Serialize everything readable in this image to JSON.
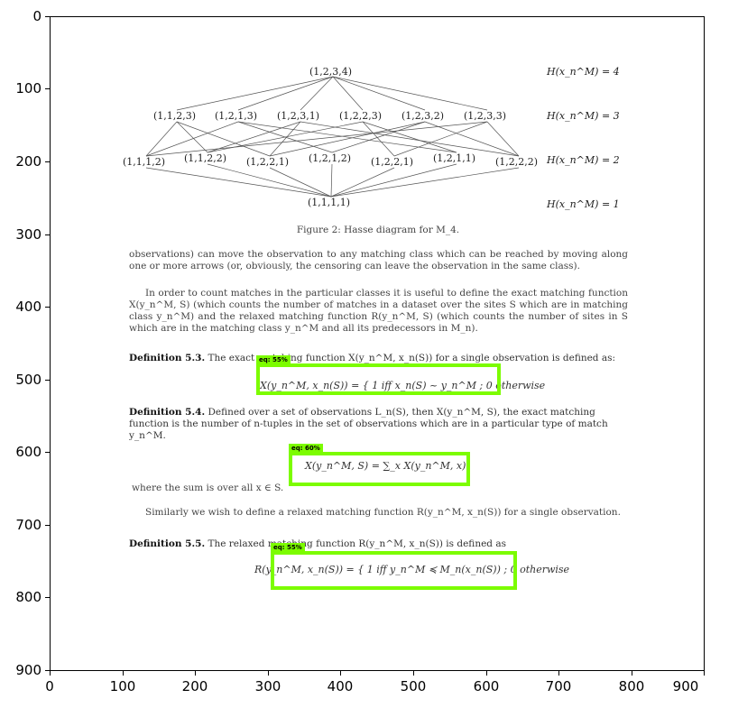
{
  "axes": {
    "y_ticks": [
      "0",
      "100",
      "200",
      "300",
      "400",
      "500",
      "600",
      "700",
      "800",
      "900"
    ],
    "x_ticks": [
      "0",
      "100",
      "200",
      "300",
      "400",
      "500",
      "600",
      "700",
      "800",
      "900"
    ]
  },
  "diagram": {
    "top": "(1,2,3,4)",
    "row3": [
      "(1,1,2,3)",
      "(1,2,1,3)",
      "(1,2,3,1)",
      "(1,2,2,3)",
      "(1,2,3,2)",
      "(1,2,3,3)"
    ],
    "row2": [
      "(1,1,1,2)",
      "(1,1,2,2)",
      "(1,2,2,1)",
      "(1,2,1,2)",
      "(1,2,2,1)",
      "(1,2,1,1)",
      "(1,2,2,2)"
    ],
    "bottom": "(1,1,1,1)",
    "ranks": [
      "H(x_n^M) = 4",
      "H(x_n^M) = 3",
      "H(x_n^M) = 2",
      "H(x_n^M) = 1"
    ],
    "caption": "Figure 2: Hasse diagram for M_4."
  },
  "text": {
    "para1": "observations) can move the observation to any matching class which can be reached by moving along one or more arrows (or, obviously, the censoring can leave the observation in the same class).",
    "para2": "In order to count matches in the particular classes it is useful to define the exact matching function X(y_n^M, S) (which counts the number of matches in a dataset over the sites S which are in matching class y_n^M) and the relaxed matching function R(y_n^M, S) (which counts the number of sites in S which are in the matching class y_n^M and all its predecessors in M_n).",
    "def1_title": "Definition 5.3.",
    "def1_body": "The exact matching function X(y_n^M, x_n(S)) for a single observation is defined as:",
    "eq1": "X(y_n^M, x_n(S)) = { 1  iff  x_n(S) ~ y_n^M ;  0  otherwise",
    "def2_title": "Definition 5.4.",
    "def2_body": "Defined over a set of observations L_n(S), then X(y_n^M, S), the exact matching function is the number of n-tuples in the set of observations which are in a particular type of match y_n^M.",
    "eq2": "X(y_n^M, S) = ∑_x X(y_n^M, x)",
    "para3": "where the sum is over all x ∈ S.",
    "para4": "Similarly we wish to define a relaxed matching function R(y_n^M, x_n(S)) for a single observation.",
    "def3_title": "Definition 5.5.",
    "def3_body": "The relaxed matching function R(y_n^M, x_n(S)) is defined as",
    "eq3": "R(y_n^M, x_n(S)) = { 1  iff  y_n^M ≼ M_n(x_n(S)) ;  0  otherwise"
  },
  "boxes": [
    {
      "label": "eq: 55%"
    },
    {
      "label": "eq: 60%"
    },
    {
      "label": "eq: 55%"
    }
  ],
  "colors": {
    "box": "#7cfc00"
  }
}
